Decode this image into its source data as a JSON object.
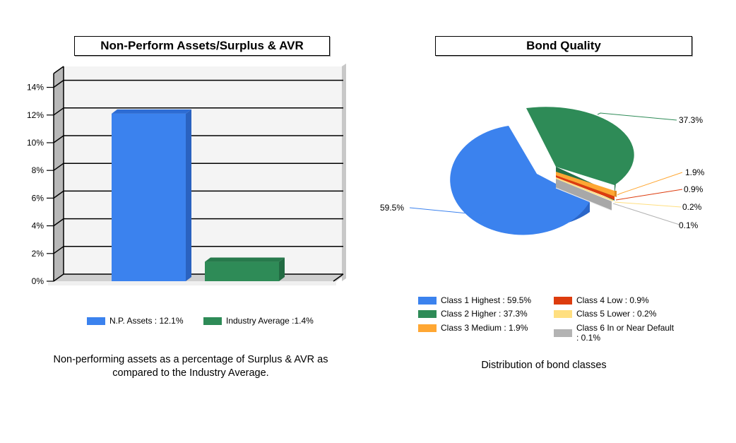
{
  "bar_panel": {
    "title": "Non-Perform Assets/Surplus & AVR",
    "caption_line1": "Non-performing assets as a percentage of Surplus & AVR as",
    "caption_line2": "compared to the Industry Average.",
    "legend": [
      {
        "label": "N.P. Assets : 12.1%",
        "color": "#3b82ee"
      },
      {
        "label": "Industry Average :1.4%",
        "color": "#2e8b57"
      }
    ]
  },
  "pie_panel": {
    "title": "Bond Quality",
    "caption": "Distribution of bond classes",
    "legend": [
      {
        "label": "Class 1 Highest : 59.5%",
        "color": "#3b82ee"
      },
      {
        "label": "Class 2 Higher : 37.3%",
        "color": "#2e8b57"
      },
      {
        "label": "Class 3 Medium : 1.9%",
        "color": "#ffa733"
      },
      {
        "label": "Class 4 Low : 0.9%",
        "color": "#dd3c0e"
      },
      {
        "label": "Class 5 Lower : 0.2%",
        "color": "#ffdf80"
      },
      {
        "label": "Class 6 In or Near Default",
        "label2": ": 0.1%",
        "color": "#b3b3b3"
      }
    ],
    "slice_labels": [
      "59.5%",
      "37.3%",
      "1.9%",
      "0.9%",
      "0.2%",
      "0.1%"
    ]
  },
  "chart_data": [
    {
      "type": "bar",
      "title": "Non-Perform Assets/Surplus & AVR",
      "categories": [
        "N.P. Assets",
        "Industry Average"
      ],
      "values": [
        12.1,
        1.4
      ],
      "colors": [
        "#3b82ee",
        "#2e8b57"
      ],
      "xlabel": "",
      "ylabel": "",
      "yticks": [
        "0%",
        "2%",
        "4%",
        "6%",
        "8%",
        "10%",
        "12%",
        "14%"
      ],
      "ylim": [
        0,
        15
      ],
      "grid": true,
      "legend_position": "bottom"
    },
    {
      "type": "pie",
      "title": "Bond Quality",
      "categories": [
        "Class 1 Highest",
        "Class 2 Higher",
        "Class 3 Medium",
        "Class 4 Low",
        "Class 5 Lower",
        "Class 6 In or Near Default"
      ],
      "values": [
        59.5,
        37.3,
        1.9,
        0.9,
        0.2,
        0.1
      ],
      "colors": [
        "#3b82ee",
        "#2e8b57",
        "#ffa733",
        "#dd3c0e",
        "#ffdf80",
        "#b3b3b3"
      ],
      "legend_position": "bottom",
      "annotation": "Distribution of bond classes"
    }
  ]
}
